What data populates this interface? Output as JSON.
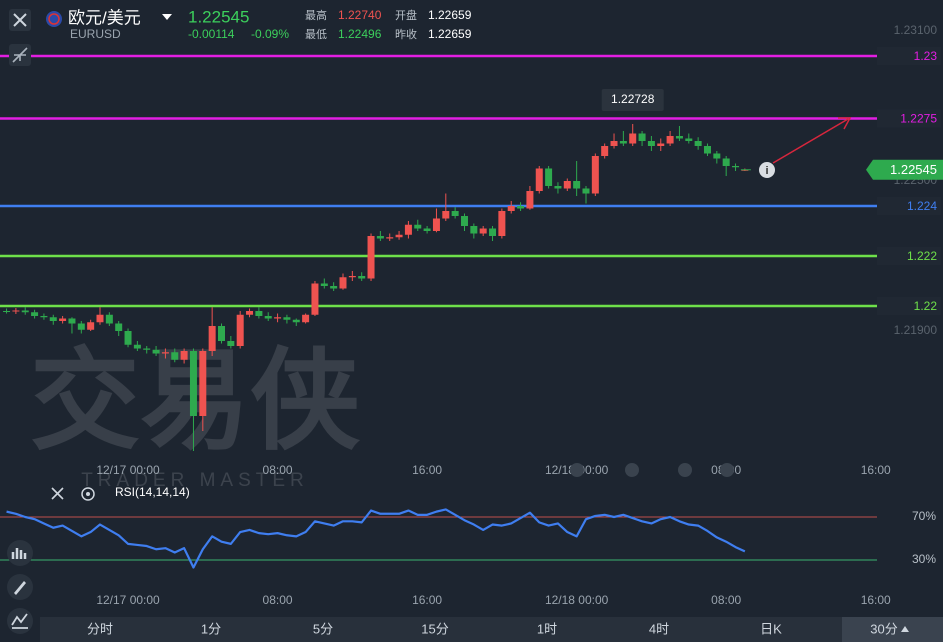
{
  "header": {
    "name": "欧元/美元",
    "symbol": "EURUSD",
    "price": "1.22545",
    "change": "-0.00114",
    "change_pct": "-0.09%",
    "stats": [
      {
        "label": "最高",
        "value": "1.22740"
      },
      {
        "label": "最低",
        "value": "1.22496"
      },
      {
        "label": "开盘",
        "value": "1.22659"
      },
      {
        "label": "昨收",
        "value": "1.22659"
      }
    ]
  },
  "watermark": {
    "title": "交易侠",
    "subtitle": "TRADER MASTER"
  },
  "chart_data": [
    {
      "type": "candlestick",
      "x": [
        -6.5,
        -6,
        -5.5,
        -5,
        -4.5,
        -4,
        -3.5,
        -3,
        -2.5,
        -2,
        -1.5,
        -1,
        -0.5,
        0,
        0.5,
        1,
        1.5,
        2,
        2.5,
        3,
        3.5,
        4,
        4.5,
        5,
        5.5,
        6,
        6.5,
        7,
        7.5,
        8,
        8.5,
        9,
        9.5,
        10,
        10.5,
        11,
        11.5,
        12,
        12.5,
        13,
        13.5,
        14,
        14.5,
        15,
        15.5,
        16,
        16.5,
        17,
        17.5,
        18,
        18.5,
        19,
        19.5,
        20,
        20.5,
        21,
        21.5,
        22,
        22.5,
        23,
        23.5,
        24,
        24.5,
        25,
        25.5,
        26,
        26.5,
        27,
        27.5,
        28,
        28.5,
        29,
        29.5,
        30,
        30.5,
        31,
        31.5,
        32,
        32.5,
        33
      ],
      "open": [
        1.2198,
        1.21978,
        1.21982,
        1.21975,
        1.2196,
        1.21955,
        1.2194,
        1.2195,
        1.2193,
        1.21905,
        1.21935,
        1.21965,
        1.2193,
        1.219,
        1.21845,
        1.2183,
        1.21825,
        1.2181,
        1.21815,
        1.21785,
        1.2182,
        1.2156,
        1.2182,
        1.2192,
        1.2186,
        1.2184,
        1.21965,
        1.2198,
        1.2196,
        1.2195,
        1.21955,
        1.21945,
        1.21935,
        1.21965,
        1.2209,
        1.2208,
        1.2207,
        1.22115,
        1.2212,
        1.2211,
        1.2228,
        1.2227,
        1.22275,
        1.22285,
        1.22325,
        1.2231,
        1.223,
        1.2235,
        1.2238,
        1.2236,
        1.2232,
        1.2229,
        1.2231,
        1.2228,
        1.2238,
        1.224,
        1.2239,
        1.2246,
        1.2255,
        1.2248,
        1.2247,
        1.225,
        1.2247,
        1.2245,
        1.226,
        1.2264,
        1.2266,
        1.2265,
        1.2269,
        1.2266,
        1.2264,
        1.2265,
        1.2268,
        1.2267,
        1.2266,
        1.2264,
        1.2261,
        1.2259,
        1.2256,
        1.22545
      ],
      "high": [
        1.2199,
        1.21992,
        1.21995,
        1.21985,
        1.2197,
        1.21965,
        1.2196,
        1.21955,
        1.2194,
        1.21945,
        1.21995,
        1.21975,
        1.2194,
        1.2191,
        1.2186,
        1.2184,
        1.2184,
        1.2183,
        1.2183,
        1.2183,
        1.2183,
        1.2183,
        1.21995,
        1.2193,
        1.2188,
        1.2198,
        1.2199,
        1.21995,
        1.21975,
        1.2197,
        1.21965,
        1.2195,
        1.2197,
        1.221,
        1.2211,
        1.22095,
        1.2213,
        1.2214,
        1.22135,
        1.2229,
        1.223,
        1.2229,
        1.223,
        1.2234,
        1.22345,
        1.2232,
        1.2239,
        1.2245,
        1.22395,
        1.2237,
        1.2233,
        1.2232,
        1.2232,
        1.2239,
        1.2242,
        1.22415,
        1.2248,
        1.2256,
        1.2256,
        1.22495,
        1.2251,
        1.2258,
        1.2248,
        1.2261,
        1.2265,
        1.2269,
        1.227,
        1.22728,
        1.227,
        1.2268,
        1.2267,
        1.227,
        1.2272,
        1.2269,
        1.22675,
        1.2265,
        1.2262,
        1.226,
        1.2257,
        1.2255
      ],
      "low": [
        1.2197,
        1.21968,
        1.21965,
        1.2195,
        1.21945,
        1.21925,
        1.2193,
        1.2189,
        1.2189,
        1.219,
        1.21925,
        1.2192,
        1.2188,
        1.21835,
        1.2182,
        1.2181,
        1.218,
        1.2179,
        1.21775,
        1.2177,
        1.2142,
        1.215,
        1.218,
        1.2185,
        1.2183,
        1.2183,
        1.21955,
        1.2195,
        1.2194,
        1.21935,
        1.2193,
        1.2192,
        1.2193,
        1.2196,
        1.2207,
        1.2206,
        1.22065,
        1.221,
        1.221,
        1.221,
        1.2226,
        1.2226,
        1.22265,
        1.2227,
        1.223,
        1.2229,
        1.22295,
        1.2234,
        1.2235,
        1.223,
        1.2227,
        1.2228,
        1.2226,
        1.2227,
        1.2237,
        1.2238,
        1.22385,
        1.2245,
        1.2247,
        1.2245,
        1.2246,
        1.2244,
        1.2241,
        1.2244,
        1.2259,
        1.2263,
        1.2264,
        1.2264,
        1.2264,
        1.2262,
        1.2262,
        1.2264,
        1.2266,
        1.2265,
        1.22625,
        1.226,
        1.2257,
        1.2252,
        1.2254,
        1.2254
      ],
      "close": [
        1.21978,
        1.21982,
        1.21975,
        1.2196,
        1.21955,
        1.2194,
        1.2195,
        1.2193,
        1.21905,
        1.21935,
        1.21965,
        1.2193,
        1.219,
        1.21845,
        1.2183,
        1.21825,
        1.2181,
        1.21815,
        1.21785,
        1.2182,
        1.2156,
        1.2182,
        1.2192,
        1.2186,
        1.2184,
        1.21965,
        1.2198,
        1.2196,
        1.2195,
        1.21955,
        1.21945,
        1.21935,
        1.21965,
        1.2209,
        1.2208,
        1.2207,
        1.22115,
        1.2212,
        1.2211,
        1.2228,
        1.2227,
        1.22275,
        1.22285,
        1.22325,
        1.2231,
        1.223,
        1.2235,
        1.2238,
        1.2236,
        1.2232,
        1.2229,
        1.2231,
        1.2228,
        1.2238,
        1.224,
        1.2239,
        1.2246,
        1.2255,
        1.2248,
        1.2247,
        1.225,
        1.2247,
        1.2245,
        1.226,
        1.2264,
        1.2266,
        1.2265,
        1.2269,
        1.2266,
        1.2264,
        1.2265,
        1.2268,
        1.2267,
        1.2266,
        1.2264,
        1.2261,
        1.2259,
        1.2256,
        1.22555,
        1.22545
      ],
      "up_color": "#ef5350",
      "down_color": "#2eaa4e",
      "xlim": [
        -6.85,
        43.6
      ],
      "ylim": [
        1.21304,
        1.23224
      ],
      "xticks": [
        {
          "value": 0,
          "label": "12/17 00:00"
        },
        {
          "value": 8,
          "label": "08:00"
        },
        {
          "value": 16,
          "label": "16:00"
        },
        {
          "value": 24,
          "label": "12/18 00:00"
        },
        {
          "value": 32,
          "label": "08:00"
        },
        {
          "value": 40,
          "label": "16:00"
        }
      ],
      "yticks": [
        {
          "value": 1.231,
          "label": "1.23100"
        },
        {
          "value": 1.225,
          "label": "1.22500"
        },
        {
          "value": 1.219,
          "label": "1.21900"
        }
      ],
      "levels": [
        {
          "value": 1.23,
          "color": "#e21ee2"
        },
        {
          "value": 1.2275,
          "color": "#e21ee2"
        },
        {
          "value": 1.224,
          "color": "#3f7ef0"
        },
        {
          "value": 1.222,
          "color": "#6ee04a"
        },
        {
          "value": 1.22,
          "color": "#6ee04a"
        }
      ],
      "high_marker": 1.22728,
      "last_price": 1.22545,
      "last_price_color": "#2eaa4e"
    },
    {
      "type": "line",
      "title": "RSI(14,14,14)",
      "x": [
        -6.5,
        -6,
        -5.5,
        -5,
        -4.5,
        -4,
        -3.5,
        -3,
        -2.5,
        -2,
        -1.5,
        -1,
        -0.5,
        0,
        0.5,
        1,
        1.5,
        2,
        2.5,
        3,
        3.5,
        4,
        4.5,
        5,
        5.5,
        6,
        6.5,
        7,
        7.5,
        8,
        8.5,
        9,
        9.5,
        10,
        10.5,
        11,
        11.5,
        12,
        12.5,
        13,
        13.5,
        14,
        14.5,
        15,
        15.5,
        16,
        16.5,
        17,
        17.5,
        18,
        18.5,
        19,
        19.5,
        20,
        20.5,
        21,
        21.5,
        22,
        22.5,
        23,
        23.5,
        24,
        24.5,
        25,
        25.5,
        26,
        26.5,
        27,
        27.5,
        28,
        28.5,
        29,
        29.5,
        30,
        30.5,
        31,
        31.5,
        32,
        32.5,
        33
      ],
      "values": [
        75,
        73,
        70,
        68,
        64,
        60,
        62,
        57,
        52,
        56,
        63,
        58,
        53,
        45,
        44,
        43,
        40,
        41,
        37,
        41,
        23,
        40,
        52,
        47,
        45,
        56,
        58,
        55,
        54,
        55,
        53,
        52,
        56,
        66,
        64,
        62,
        66,
        66,
        65,
        76,
        73,
        73,
        73,
        76,
        72,
        72,
        75,
        77,
        72,
        67,
        63,
        58,
        63,
        62,
        64,
        69,
        74,
        65,
        62,
        64,
        56,
        52,
        68,
        71,
        72,
        70,
        72,
        69,
        66,
        64,
        68,
        70,
        66,
        63,
        62,
        57,
        51,
        47,
        42,
        38
      ],
      "color": "#3f7ef0",
      "xlim": [
        -6.85,
        43.6
      ],
      "ylim": [
        0,
        100
      ],
      "xticks": [
        {
          "value": 0,
          "label": "12/17 00:00"
        },
        {
          "value": 8,
          "label": "08:00"
        },
        {
          "value": 16,
          "label": "16:00"
        },
        {
          "value": 24,
          "label": "12/18 00:00"
        },
        {
          "value": 32,
          "label": "08:00"
        },
        {
          "value": 40,
          "label": "16:00"
        }
      ],
      "yticks": [
        {
          "value": 70,
          "label": "70%"
        },
        {
          "value": 30,
          "label": "30%"
        }
      ],
      "grid_colors": [
        "#c0504d",
        "#3cb371"
      ]
    }
  ],
  "tabs": [
    "分时",
    "1分",
    "5分",
    "15分",
    "1时",
    "4时",
    "日K",
    "30分"
  ]
}
